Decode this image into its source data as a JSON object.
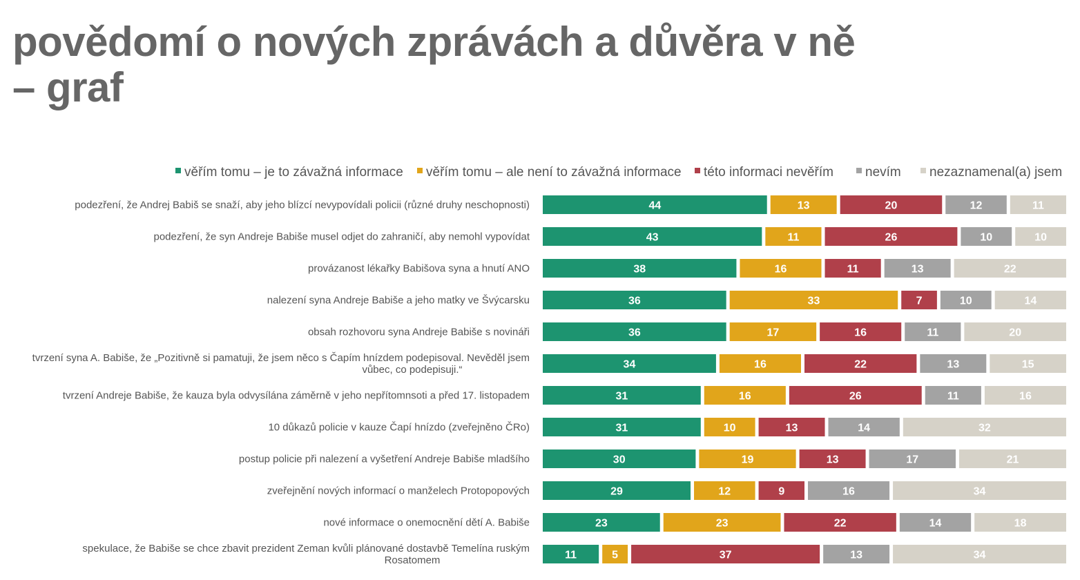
{
  "title": {
    "line1": "povědomí o nových zprávách a důvěra v ně",
    "line2": "– graf"
  },
  "chart_data": {
    "type": "bar",
    "orientation": "horizontal",
    "stacked": true,
    "percent_stacked": true,
    "legend_position": "top",
    "grid": false,
    "categories": [
      [
        "podezření, že Andrej Babiš se snaží, aby jeho blízcí nevypovídali policii (různé druhy neschopnosti)"
      ],
      [
        "podezření, že syn Andreje Babiše musel odjet do zahraničí, aby nemohl vypovídat"
      ],
      [
        "provázanost lékařky Babišova syna a hnutí ANO"
      ],
      [
        "nalezení syna Andreje Babiše a jeho matky ve Švýcarsku"
      ],
      [
        "obsah rozhovoru syna Andreje Babiše s novináři"
      ],
      [
        "tvrzení syna A. Babiše, že „Pozitivně si pamatuji, že jsem něco s Čapím hnízdem podepisoval. Nevěděl jsem",
        "vůbec, co podepisuji.“"
      ],
      [
        "tvrzení Andreje Babiše, že kauza byla odvysílána záměrně v jeho nepřítomnsoti a před 17. listopadem"
      ],
      [
        "10 důkazů policie v kauze Čapí hnízdo (zveřejněno ČRo)"
      ],
      [
        "postup policie při nalezení a vyšetření Andreje Babiše mladšího"
      ],
      [
        "zveřejnění nových informací o manželech Protopopových"
      ],
      [
        "nové informace o onemocnění dětí A. Babiše"
      ],
      [
        "spekulace, že Babiše se chce zbavit prezident Zeman kvůli plánované dostavbě Temelína ruským",
        "Rosatomem"
      ]
    ],
    "series": [
      {
        "name": "věřím tomu – je to závažná informace",
        "color": "#1d9470",
        "label_color": "#ffffff",
        "values": [
          44,
          43,
          38,
          36,
          36,
          34,
          31,
          31,
          30,
          29,
          23,
          11
        ]
      },
      {
        "name": "věřím tomu – ale není to závažná informace",
        "color": "#e1a51b",
        "label_color": "#ffffff",
        "values": [
          13,
          11,
          16,
          33,
          17,
          16,
          16,
          10,
          19,
          12,
          23,
          5
        ]
      },
      {
        "name": "této informaci nevěřím",
        "color": "#b0404a",
        "label_color": "#ffffff",
        "values": [
          20,
          26,
          11,
          7,
          16,
          22,
          26,
          13,
          13,
          9,
          22,
          37
        ]
      },
      {
        "name": "nevím",
        "color": "#a3a3a3",
        "label_color": "#ffffff",
        "values": [
          12,
          10,
          13,
          10,
          11,
          13,
          11,
          14,
          17,
          16,
          14,
          13
        ]
      },
      {
        "name": "nezaznamenal(a) jsem",
        "color": "#d6d2c8",
        "label_color": "#ffffff",
        "values": [
          11,
          10,
          22,
          14,
          20,
          15,
          16,
          32,
          21,
          34,
          18,
          34
        ]
      }
    ]
  }
}
